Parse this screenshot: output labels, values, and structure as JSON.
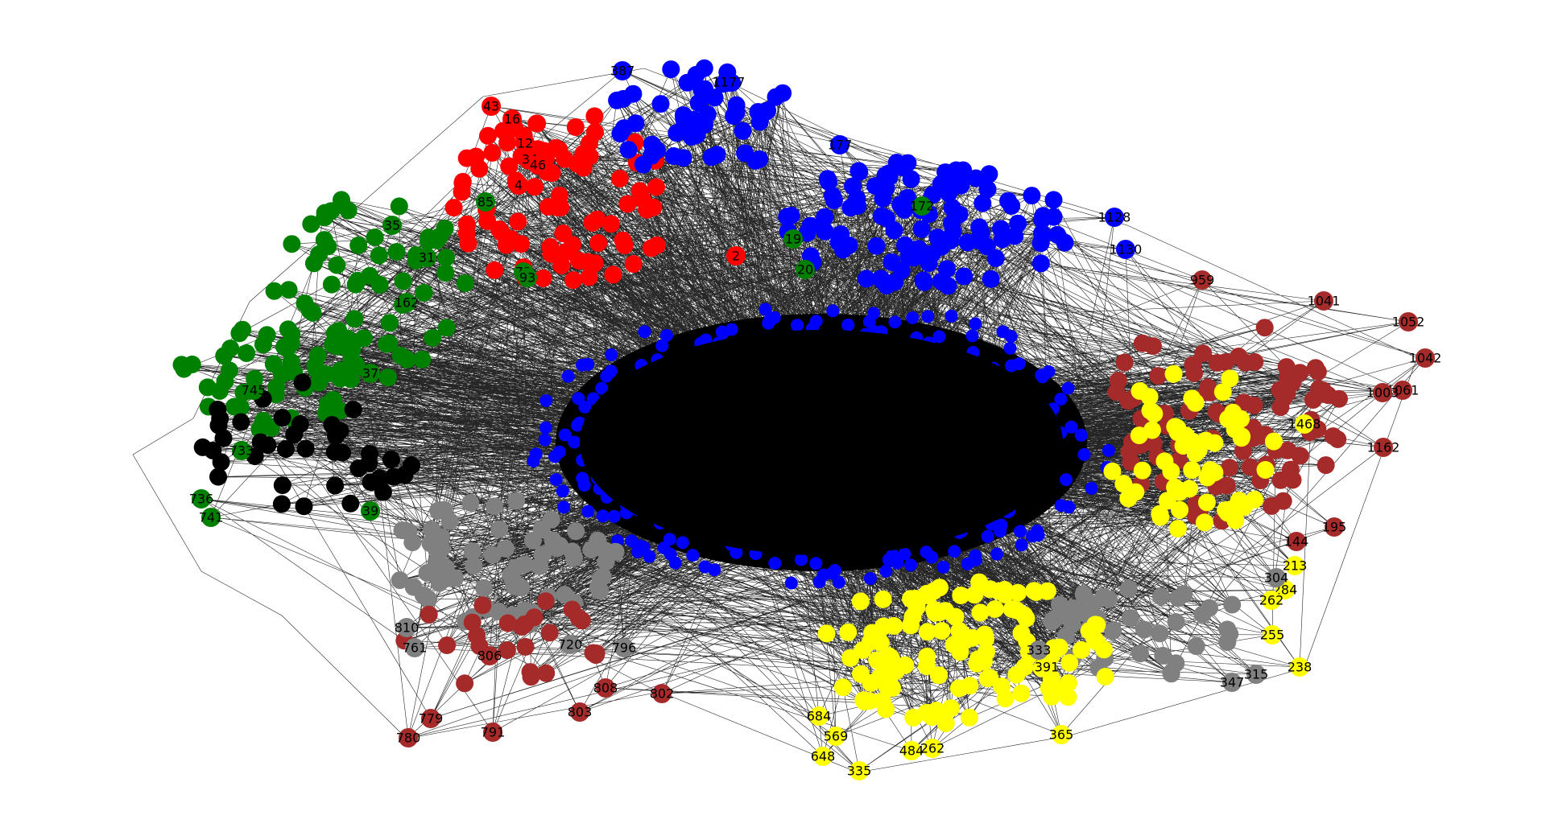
{
  "figure": {
    "title": "",
    "background": "#ffffff",
    "edge_color": "#000000",
    "core_color": "#000000",
    "core_overlay_color": "#0000ff"
  },
  "palette": {
    "red": "#ff0000",
    "blue": "#0000ff",
    "green": "#008000",
    "black": "#000000",
    "gray": "#808080",
    "yellow": "#ffff00",
    "brown": "#a52a2a"
  },
  "nodes": [
    {
      "label": "43",
      "color": "red"
    },
    {
      "label": "16",
      "color": "red"
    },
    {
      "label": "12",
      "color": "red"
    },
    {
      "label": "34",
      "color": "red"
    },
    {
      "label": "46",
      "color": "red"
    },
    {
      "label": "4",
      "color": "red"
    },
    {
      "label": "2",
      "color": "red"
    },
    {
      "label": "35",
      "color": "green"
    },
    {
      "label": "162",
      "color": "green"
    },
    {
      "label": "172",
      "color": "green"
    },
    {
      "label": "19",
      "color": "green"
    },
    {
      "label": "20",
      "color": "green"
    },
    {
      "label": "85",
      "color": "green"
    },
    {
      "label": "72",
      "color": "green"
    },
    {
      "label": "93",
      "color": "green"
    },
    {
      "label": "31",
      "color": "green"
    },
    {
      "label": "39",
      "color": "green"
    },
    {
      "label": "37",
      "color": "green"
    },
    {
      "label": "736",
      "color": "green"
    },
    {
      "label": "741",
      "color": "green"
    },
    {
      "label": "733",
      "color": "green"
    },
    {
      "label": "745",
      "color": "green"
    },
    {
      "label": "1041",
      "color": "brown"
    },
    {
      "label": "1052",
      "color": "brown"
    },
    {
      "label": "1042",
      "color": "brown"
    },
    {
      "label": "1061",
      "color": "brown"
    },
    {
      "label": "1162",
      "color": "brown"
    },
    {
      "label": "195",
      "color": "brown"
    },
    {
      "label": "144",
      "color": "brown"
    },
    {
      "label": "959",
      "color": "brown"
    },
    {
      "label": "1003",
      "color": "brown"
    },
    {
      "label": "780",
      "color": "brown"
    },
    {
      "label": "791",
      "color": "brown"
    },
    {
      "label": "779",
      "color": "brown"
    },
    {
      "label": "808",
      "color": "brown"
    },
    {
      "label": "803",
      "color": "brown"
    },
    {
      "label": "802",
      "color": "brown"
    },
    {
      "label": "806",
      "color": "brown"
    },
    {
      "label": "1468",
      "color": "yellow"
    },
    {
      "label": "213",
      "color": "yellow"
    },
    {
      "label": "238",
      "color": "yellow"
    },
    {
      "label": "365",
      "color": "yellow"
    },
    {
      "label": "335",
      "color": "yellow"
    },
    {
      "label": "648",
      "color": "yellow"
    },
    {
      "label": "262",
      "color": "yellow"
    },
    {
      "label": "484",
      "color": "yellow"
    },
    {
      "label": "569",
      "color": "yellow"
    },
    {
      "label": "684",
      "color": "yellow"
    },
    {
      "label": "391",
      "color": "yellow"
    },
    {
      "label": "284",
      "color": "yellow"
    },
    {
      "label": "262",
      "color": "yellow"
    },
    {
      "label": "255",
      "color": "yellow"
    },
    {
      "label": "304",
      "color": "gray"
    },
    {
      "label": "347",
      "color": "gray"
    },
    {
      "label": "761",
      "color": "gray"
    },
    {
      "label": "810",
      "color": "gray"
    },
    {
      "label": "796",
      "color": "gray"
    },
    {
      "label": "720",
      "color": "gray"
    },
    {
      "label": "333",
      "color": "gray"
    },
    {
      "label": "315",
      "color": "gray"
    },
    {
      "label": "387",
      "color": "blue"
    },
    {
      "label": "1177",
      "color": "blue"
    },
    {
      "label": "1128",
      "color": "blue"
    },
    {
      "label": "1130",
      "color": "blue"
    },
    {
      "label": "177",
      "color": "blue"
    }
  ]
}
